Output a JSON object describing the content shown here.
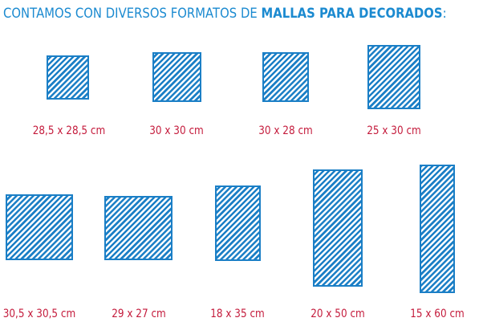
{
  "heading": {
    "prefix": "CONTAMOS CON DIVERSOS FORMATOS DE ",
    "emphasis": "MALLAS PARA DECORADOS",
    "suffix": ":"
  },
  "formats": [
    {
      "label": "28,5 x 28,5 cm"
    },
    {
      "label": "30 x 30 cm"
    },
    {
      "label": "30 x 28 cm"
    },
    {
      "label": "25 x 30 cm"
    },
    {
      "label": "30,5 x 30,5 cm"
    },
    {
      "label": "29 x 27 cm"
    },
    {
      "label": "18 x 35 cm"
    },
    {
      "label": "20 x 50 cm"
    },
    {
      "label": "15 x 60 cm"
    }
  ],
  "colors": {
    "heading": "#1b8ad0",
    "mesh": "#1b7fc6",
    "size_label": "#c41a3b"
  }
}
